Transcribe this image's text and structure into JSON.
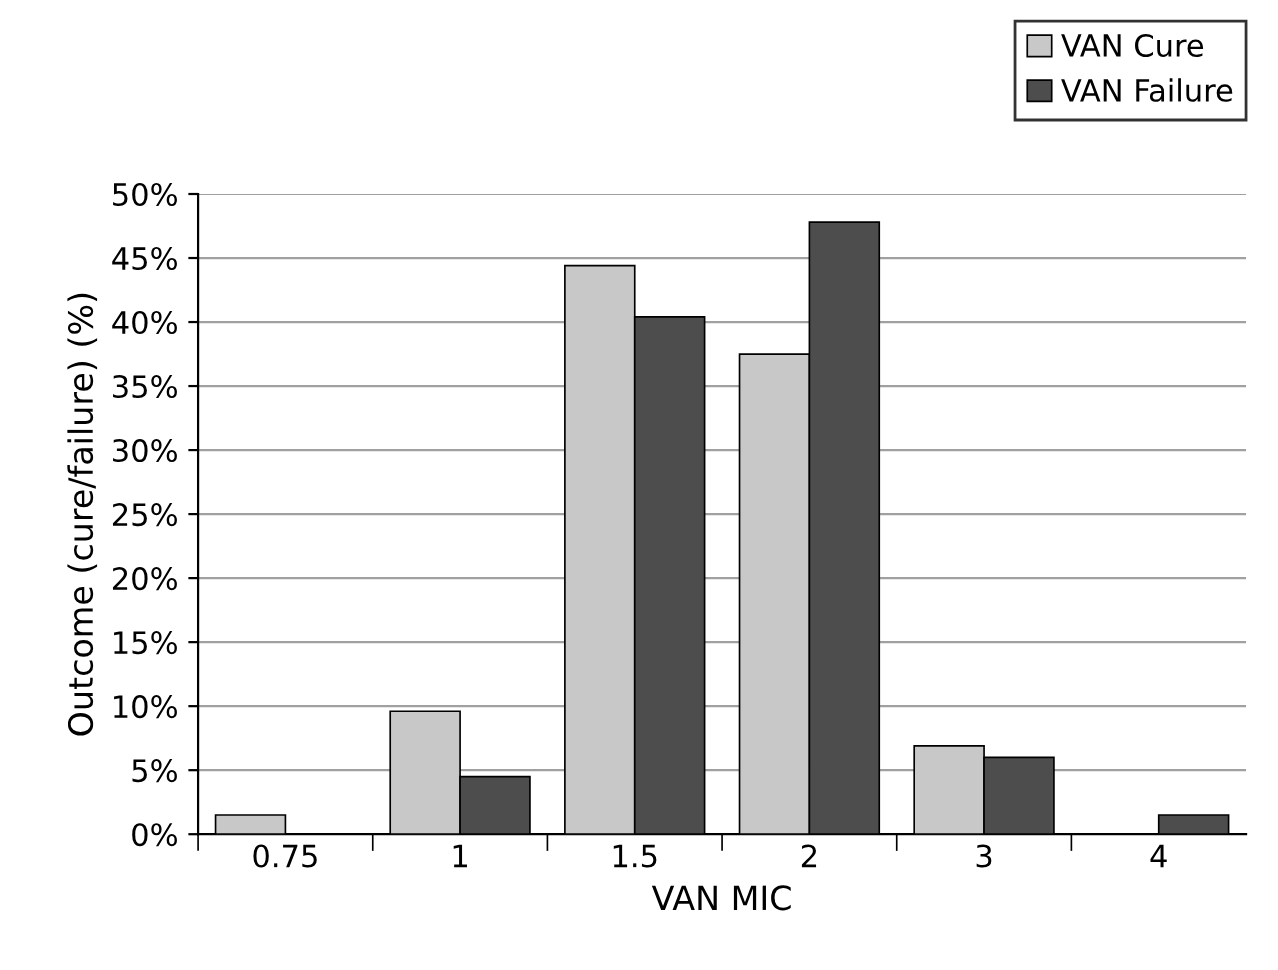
{
  "chart_data": {
    "type": "bar",
    "xlabel": "VAN MIC",
    "ylabel": "Outcome (cure/failure) (%)",
    "categories": [
      "0.75",
      "1",
      "1.5",
      "2",
      "3",
      "4"
    ],
    "series": [
      {
        "name": "VAN Cure",
        "color": "#c8c8c8",
        "values": [
          1.5,
          9.6,
          44.4,
          37.5,
          6.9,
          null
        ]
      },
      {
        "name": "VAN Failure",
        "color": "#4d4d4d",
        "values": [
          null,
          4.5,
          40.4,
          47.8,
          6.0,
          1.5
        ]
      }
    ],
    "ylim": [
      0,
      50
    ],
    "yticks": [
      {
        "value": 0,
        "label": "0%"
      },
      {
        "value": 5,
        "label": "5%"
      },
      {
        "value": 10,
        "label": "10%"
      },
      {
        "value": 15,
        "label": "15%"
      },
      {
        "value": 20,
        "label": "20%"
      },
      {
        "value": 25,
        "label": "25%"
      },
      {
        "value": 30,
        "label": "30%"
      },
      {
        "value": 35,
        "label": "35%"
      },
      {
        "value": 40,
        "label": "40%"
      },
      {
        "value": 45,
        "label": "45%"
      },
      {
        "value": 50,
        "label": "50%"
      }
    ],
    "grid": "y",
    "legend": "top right"
  }
}
